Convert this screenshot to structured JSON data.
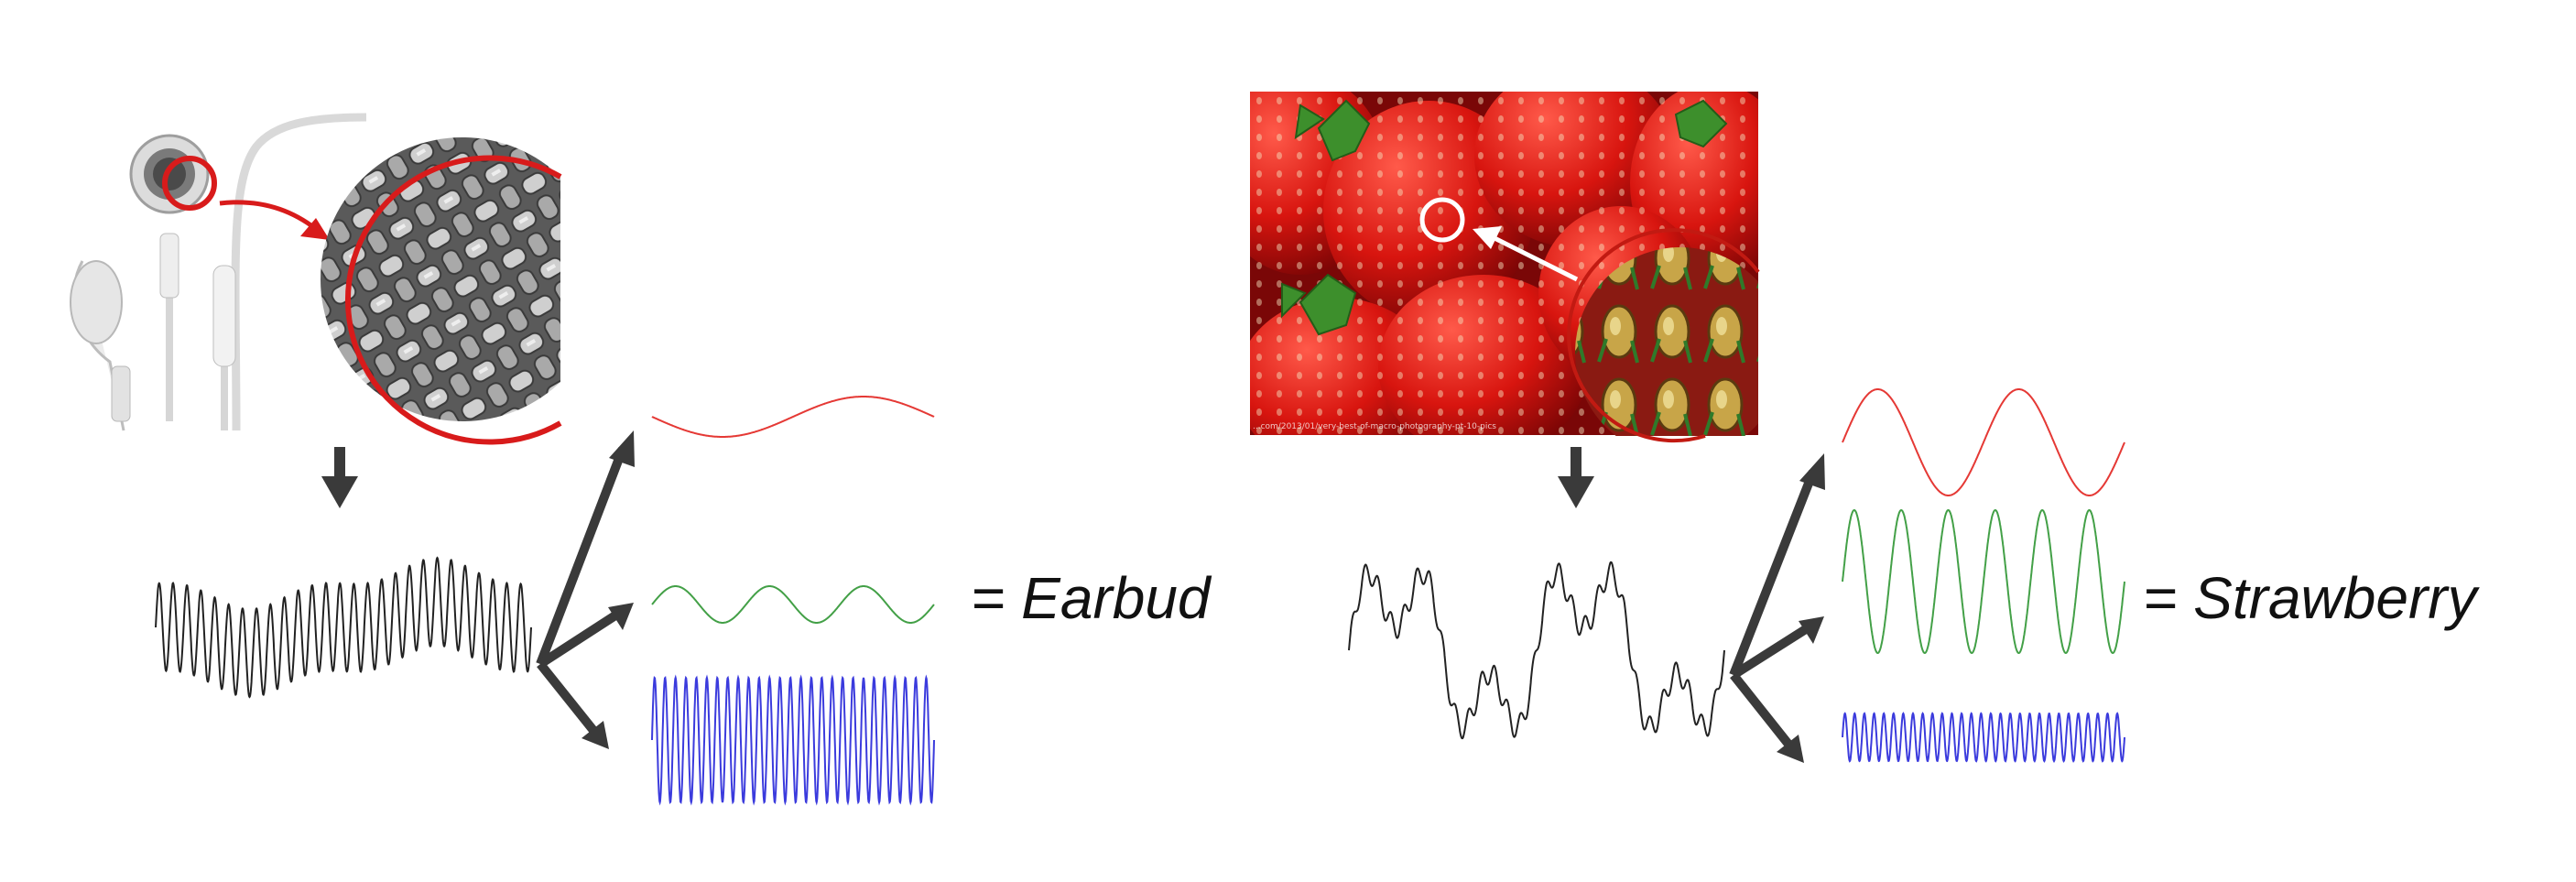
{
  "panels": [
    {
      "id": "earbud",
      "result_label": "= Earbud",
      "photo_description_icon": "earbud-photo",
      "zoom_icon": "woven-mesh-micrograph",
      "components": [
        {
          "color": "#e53935",
          "cycles": 1
        },
        {
          "color": "#43a047",
          "cycles": 3
        },
        {
          "color": "#3b3bdd",
          "cycles": 27
        }
      ]
    },
    {
      "id": "strawberry",
      "result_label": "= Strawberry",
      "photo_description_icon": "strawberries-photo",
      "zoom_icon": "seed-micrograph",
      "photo_credit": "...com/2013/01/very-best-of-macro-photography-pt-10-pics",
      "components": [
        {
          "color": "#e53935",
          "cycles": 2
        },
        {
          "color": "#43a047",
          "cycles": 6
        },
        {
          "color": "#3b3bdd",
          "cycles": 29
        }
      ]
    }
  ],
  "colors": {
    "arrow": "#3a3a3a",
    "signal": "#222222",
    "highlight_red": "#d81b1b",
    "highlight_white": "#ffffff"
  }
}
